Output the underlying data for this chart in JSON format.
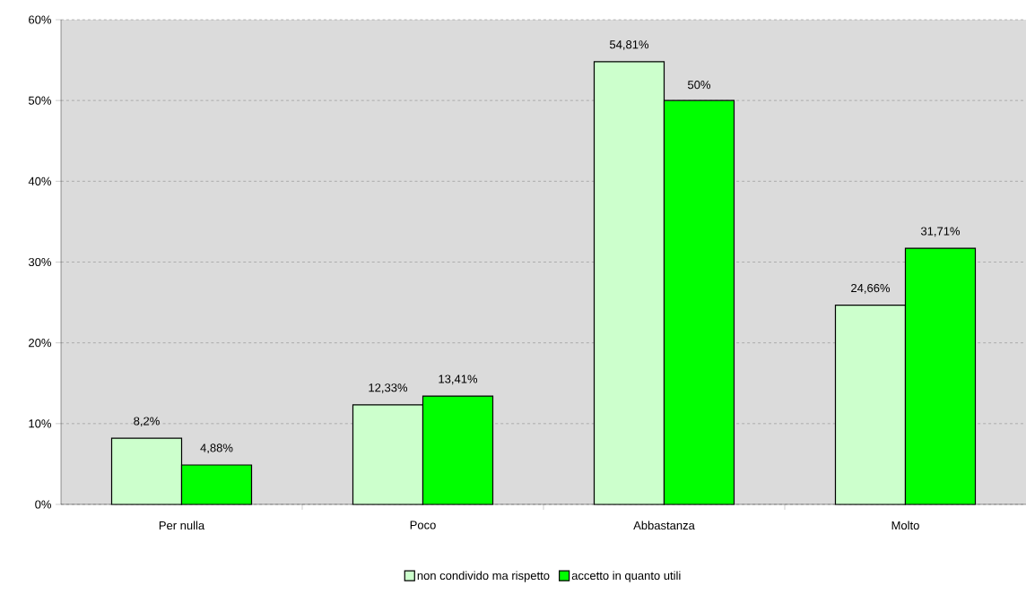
{
  "chart_data": {
    "type": "bar",
    "categories": [
      "Per nulla",
      "Poco",
      "Abbastanza",
      "Molto"
    ],
    "series": [
      {
        "name": "non condivido ma rispetto",
        "color": "#ccffcc",
        "values": [
          8.2,
          12.33,
          54.81,
          24.66
        ],
        "value_labels": [
          "8,2%",
          "12,33%",
          "54,81%",
          "24,66%"
        ]
      },
      {
        "name": "accetto in quanto utili",
        "color": "#00ff00",
        "values": [
          4.88,
          13.41,
          50,
          31.71
        ],
        "value_labels": [
          "4,88%",
          "13,41%",
          "50%",
          "31,71%"
        ]
      }
    ],
    "ylim": [
      0,
      60
    ],
    "yticks": [
      {
        "value": 0,
        "label": "0%"
      },
      {
        "value": 10,
        "label": "10%"
      },
      {
        "value": 20,
        "label": "20%"
      },
      {
        "value": 30,
        "label": "30%"
      },
      {
        "value": 40,
        "label": "40%"
      },
      {
        "value": 50,
        "label": "50%"
      },
      {
        "value": 60,
        "label": "60%"
      }
    ],
    "grid": "y",
    "legend": "bottom"
  }
}
